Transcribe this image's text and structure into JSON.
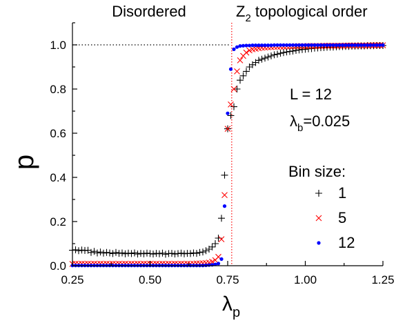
{
  "chart_data": {
    "type": "scatter",
    "xlabel": "λ",
    "xlabel_sub": "p",
    "ylabel": "p",
    "xlim": [
      0.25,
      1.25
    ],
    "ylim": [
      0.0,
      1.1
    ],
    "x_ticks": [
      0.25,
      0.5,
      0.75,
      1.0,
      1.25
    ],
    "x_tick_labels": [
      "0.25",
      "0.50",
      "0.75",
      "1.00",
      "1.25"
    ],
    "y_ticks": [
      0.0,
      0.2,
      0.4,
      0.6,
      0.8,
      1.0
    ],
    "y_tick_labels": [
      "0.0",
      "0.2",
      "0.4",
      "0.6",
      "0.8",
      "1.0"
    ],
    "reference_lines": {
      "horizontal": {
        "y": 1.0,
        "style": "dotted",
        "color": "#000000",
        "from_x": 0.25,
        "to_x": 0.76
      },
      "vertical": {
        "x": 0.763,
        "style": "dotted",
        "color": "#ff0000"
      }
    },
    "region_labels": {
      "left": "Disordered",
      "right_prefix": "Z",
      "right_sub": "2",
      "right_suffix": " topological order"
    },
    "params": {
      "L_text": "L = 12",
      "lambda_symbol": "λ",
      "lambda_sub": "b",
      "lambda_value": "=0.025"
    },
    "legend_title": "Bin size:",
    "legend_placement": "right",
    "series": [
      {
        "name": "1",
        "marker": "plus",
        "color": "#000000",
        "x": [
          0.25,
          0.26,
          0.27,
          0.28,
          0.29,
          0.3,
          0.31,
          0.32,
          0.33,
          0.34,
          0.35,
          0.36,
          0.37,
          0.38,
          0.39,
          0.4,
          0.41,
          0.42,
          0.43,
          0.44,
          0.45,
          0.46,
          0.47,
          0.48,
          0.49,
          0.5,
          0.51,
          0.52,
          0.53,
          0.54,
          0.55,
          0.56,
          0.57,
          0.58,
          0.59,
          0.6,
          0.61,
          0.62,
          0.63,
          0.64,
          0.65,
          0.66,
          0.67,
          0.68,
          0.69,
          0.7,
          0.71,
          0.72,
          0.73,
          0.74,
          0.75,
          0.76,
          0.77,
          0.78,
          0.79,
          0.8,
          0.81,
          0.82,
          0.83,
          0.84,
          0.85,
          0.86,
          0.87,
          0.88,
          0.89,
          0.9,
          0.91,
          0.92,
          0.93,
          0.94,
          0.95,
          0.96,
          0.97,
          0.98,
          0.99,
          1.0,
          1.01,
          1.02,
          1.03,
          1.04,
          1.05,
          1.06,
          1.07,
          1.08,
          1.09,
          1.1,
          1.11,
          1.12,
          1.13,
          1.14,
          1.15,
          1.16,
          1.17,
          1.18,
          1.19,
          1.2,
          1.21,
          1.22,
          1.23,
          1.24,
          1.25
        ],
        "y": [
          0.07,
          0.072,
          0.068,
          0.071,
          0.069,
          0.07,
          0.06,
          0.065,
          0.058,
          0.062,
          0.057,
          0.06,
          0.058,
          0.055,
          0.06,
          0.056,
          0.058,
          0.054,
          0.057,
          0.055,
          0.058,
          0.053,
          0.056,
          0.054,
          0.057,
          0.055,
          0.053,
          0.056,
          0.054,
          0.057,
          0.052,
          0.055,
          0.056,
          0.053,
          0.055,
          0.057,
          0.054,
          0.056,
          0.055,
          0.058,
          0.056,
          0.06,
          0.062,
          0.068,
          0.075,
          0.085,
          0.1,
          0.125,
          0.215,
          0.41,
          0.62,
          0.68,
          0.72,
          0.8,
          0.84,
          0.86,
          0.88,
          0.9,
          0.91,
          0.92,
          0.93,
          0.935,
          0.94,
          0.945,
          0.95,
          0.955,
          0.958,
          0.962,
          0.965,
          0.968,
          0.97,
          0.972,
          0.975,
          0.977,
          0.979,
          0.98,
          0.982,
          0.983,
          0.985,
          0.986,
          0.987,
          0.988,
          0.989,
          0.99,
          0.99,
          0.991,
          0.992,
          0.992,
          0.993,
          0.993,
          0.994,
          0.994,
          0.995,
          0.995,
          0.995,
          0.996,
          0.996,
          0.996,
          0.997,
          0.997,
          0.997
        ]
      },
      {
        "name": "5",
        "marker": "x",
        "color": "#ff0000",
        "x": [
          0.25,
          0.26,
          0.27,
          0.28,
          0.29,
          0.3,
          0.31,
          0.32,
          0.33,
          0.34,
          0.35,
          0.36,
          0.37,
          0.38,
          0.39,
          0.4,
          0.41,
          0.42,
          0.43,
          0.44,
          0.45,
          0.46,
          0.47,
          0.48,
          0.49,
          0.5,
          0.51,
          0.52,
          0.53,
          0.54,
          0.55,
          0.56,
          0.57,
          0.58,
          0.59,
          0.6,
          0.61,
          0.62,
          0.63,
          0.64,
          0.65,
          0.66,
          0.67,
          0.68,
          0.69,
          0.7,
          0.71,
          0.72,
          0.73,
          0.74,
          0.75,
          0.76,
          0.77,
          0.78,
          0.79,
          0.8,
          0.81,
          0.82,
          0.83,
          0.84,
          0.85,
          0.86,
          0.87,
          0.88,
          0.89,
          0.9,
          0.91,
          0.92,
          0.93,
          0.94,
          0.95,
          0.96,
          0.97,
          0.98,
          0.99,
          1.0,
          1.01,
          1.02,
          1.03,
          1.04,
          1.05,
          1.06,
          1.07,
          1.08,
          1.09,
          1.1,
          1.11,
          1.12,
          1.13,
          1.14,
          1.15,
          1.16,
          1.17,
          1.18,
          1.19,
          1.2,
          1.21,
          1.22,
          1.23,
          1.24,
          1.25
        ],
        "y": [
          0.008,
          0.009,
          0.008,
          0.009,
          0.008,
          0.009,
          0.008,
          0.009,
          0.008,
          0.009,
          0.008,
          0.009,
          0.008,
          0.009,
          0.008,
          0.009,
          0.008,
          0.009,
          0.008,
          0.009,
          0.008,
          0.009,
          0.008,
          0.009,
          0.008,
          0.009,
          0.008,
          0.009,
          0.008,
          0.009,
          0.008,
          0.009,
          0.008,
          0.009,
          0.008,
          0.009,
          0.008,
          0.009,
          0.008,
          0.009,
          0.01,
          0.01,
          0.011,
          0.012,
          0.014,
          0.018,
          0.025,
          0.04,
          0.12,
          0.32,
          0.62,
          0.73,
          0.8,
          0.88,
          0.93,
          0.95,
          0.965,
          0.975,
          0.98,
          0.982,
          0.985,
          0.987,
          0.988,
          0.989,
          0.99,
          0.991,
          0.991,
          0.992,
          0.992,
          0.993,
          0.993,
          0.993,
          0.994,
          0.994,
          0.994,
          0.994,
          0.995,
          0.995,
          0.995,
          0.995,
          0.995,
          0.996,
          0.996,
          0.996,
          0.996,
          0.996,
          0.996,
          0.996,
          0.997,
          0.997,
          0.997,
          0.997,
          0.997,
          0.997,
          0.997,
          0.997,
          0.998,
          0.998,
          0.998,
          0.998,
          0.998
        ]
      },
      {
        "name": "12",
        "marker": "dot",
        "color": "#0000ff",
        "x": [
          0.25,
          0.26,
          0.27,
          0.28,
          0.29,
          0.3,
          0.31,
          0.32,
          0.33,
          0.34,
          0.35,
          0.36,
          0.37,
          0.38,
          0.39,
          0.4,
          0.41,
          0.42,
          0.43,
          0.44,
          0.45,
          0.46,
          0.47,
          0.48,
          0.49,
          0.5,
          0.51,
          0.52,
          0.53,
          0.54,
          0.55,
          0.56,
          0.57,
          0.58,
          0.59,
          0.6,
          0.61,
          0.62,
          0.63,
          0.64,
          0.65,
          0.66,
          0.67,
          0.68,
          0.69,
          0.7,
          0.71,
          0.72,
          0.73,
          0.74,
          0.75,
          0.76,
          0.77,
          0.78,
          0.79,
          0.8,
          0.81,
          0.82,
          0.83,
          0.84,
          0.85,
          0.86,
          0.87,
          0.88,
          0.89,
          0.9,
          0.91,
          0.92,
          0.93,
          0.94,
          0.95,
          0.96,
          0.97,
          0.98,
          0.99,
          1.0,
          1.01,
          1.02,
          1.03,
          1.04,
          1.05,
          1.06,
          1.07,
          1.08,
          1.09,
          1.1,
          1.11,
          1.12,
          1.13,
          1.14,
          1.15,
          1.16,
          1.17,
          1.18,
          1.19,
          1.2,
          1.21,
          1.22,
          1.23,
          1.24,
          1.25
        ],
        "y": [
          0.001,
          0.001,
          0.001,
          0.001,
          0.001,
          0.001,
          0.001,
          0.001,
          0.001,
          0.001,
          0.001,
          0.001,
          0.001,
          0.001,
          0.001,
          0.001,
          0.001,
          0.001,
          0.001,
          0.001,
          0.001,
          0.001,
          0.001,
          0.001,
          0.001,
          0.001,
          0.001,
          0.001,
          0.001,
          0.001,
          0.001,
          0.001,
          0.001,
          0.001,
          0.001,
          0.001,
          0.001,
          0.001,
          0.001,
          0.001,
          0.001,
          0.001,
          0.001,
          0.002,
          0.003,
          0.004,
          0.006,
          0.01,
          0.03,
          0.27,
          0.69,
          0.89,
          0.98,
          0.99,
          0.995,
          0.996,
          0.997,
          0.997,
          0.998,
          0.998,
          0.998,
          0.998,
          0.998,
          0.998,
          0.998,
          0.999,
          0.999,
          0.999,
          0.999,
          0.999,
          0.999,
          0.999,
          0.999,
          0.999,
          0.999,
          0.999,
          0.999,
          0.999,
          0.999,
          0.999,
          0.999,
          0.999,
          0.999,
          0.999,
          0.999,
          0.999,
          0.999,
          0.999,
          0.999,
          0.999,
          0.999,
          0.999,
          0.999,
          0.999,
          0.999,
          0.999,
          0.999,
          0.999,
          0.999,
          0.999,
          0.999
        ]
      }
    ]
  }
}
